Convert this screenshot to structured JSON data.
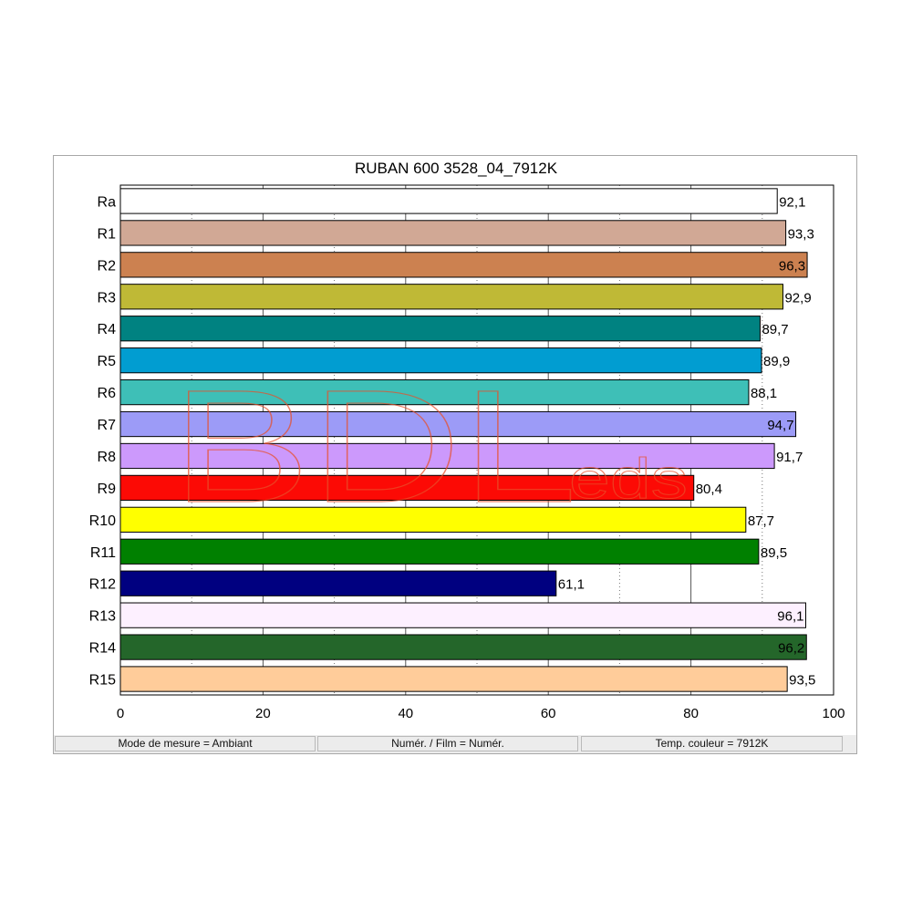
{
  "chart_data": {
    "type": "bar",
    "orientation": "horizontal",
    "title": "RUBAN 600 3528_04_7912K",
    "categories": [
      "Ra",
      "R1",
      "R2",
      "R3",
      "R4",
      "R5",
      "R6",
      "R7",
      "R8",
      "R9",
      "R10",
      "R11",
      "R12",
      "R13",
      "R14",
      "R15"
    ],
    "values": [
      92.1,
      93.3,
      96.3,
      92.9,
      89.7,
      89.9,
      88.1,
      94.7,
      91.7,
      80.4,
      87.7,
      89.5,
      61.1,
      96.1,
      96.2,
      93.5
    ],
    "value_labels": [
      "92,1",
      "93,3",
      "96,3",
      "92,9",
      "89,7",
      "89,9",
      "88,1",
      "94,7",
      "91,7",
      "80,4",
      "87,7",
      "89,5",
      "61,1",
      "96,1",
      "96,2",
      "93,5"
    ],
    "label_inside": [
      false,
      false,
      true,
      false,
      false,
      false,
      false,
      true,
      false,
      false,
      false,
      false,
      false,
      true,
      true,
      false
    ],
    "colors": [
      "#ffffff",
      "#d1a895",
      "#cc8150",
      "#bfb936",
      "#008281",
      "#019dd1",
      "#3ebfb7",
      "#9c9bf7",
      "#cc99fc",
      "#fc0a05",
      "#ffff00",
      "#008000",
      "#000080",
      "#fdf0ff",
      "#24662a",
      "#ffcc9a"
    ],
    "xlim": [
      0,
      100
    ],
    "xticks": [
      0,
      20,
      40,
      60,
      80,
      100
    ],
    "xtick_labels": [
      "0",
      "20",
      "40",
      "60",
      "80",
      "100"
    ],
    "xlabel": "",
    "ylabel": "",
    "grid": true,
    "legend": "none"
  },
  "watermark": {
    "text_main": "BDL",
    "text_small": "eds",
    "color": "#e8502a"
  },
  "status": {
    "mode": "Mode de mesure = Ambiant",
    "film": "Numér. / Film = Numér.",
    "temp": "Temp. couleur = 7912K"
  }
}
